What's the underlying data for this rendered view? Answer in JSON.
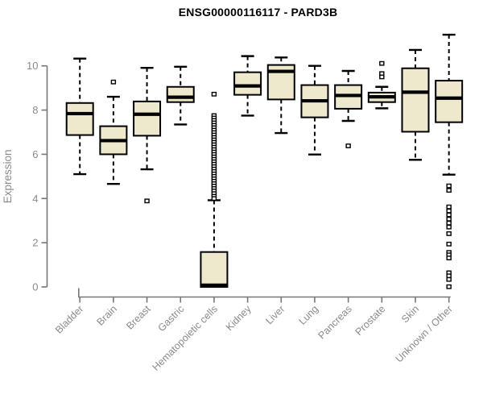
{
  "title": "ENSG00000116117 - PARD3B",
  "colors": {
    "box_fill": "#EEE8CD",
    "box_stroke": "#000000",
    "median": "#000000",
    "whisker": "#000000",
    "axis": "#777777",
    "tick_label": "#8a8a8a",
    "title_color": "#000000",
    "background": "#ffffff"
  },
  "chart_data": {
    "type": "boxplot",
    "title": "ENSG00000116117 - PARD3B",
    "xlabel": "",
    "ylabel": "Expression",
    "yticks": [
      0,
      2,
      4,
      6,
      8,
      10
    ],
    "ylim": [
      0,
      11.4
    ],
    "grid": false,
    "legend": "none",
    "categories": [
      "Bladder",
      "Brain",
      "Breast",
      "Gastric",
      "Hematopoietic cells",
      "Kidney",
      "Liver",
      "Lung",
      "Pancreas",
      "Prostate",
      "Skin",
      "Unknown / Other"
    ],
    "series": [
      {
        "label": "Bladder",
        "low": 5.1,
        "q1": 6.87,
        "median": 7.84,
        "q3": 8.32,
        "high": 10.33,
        "outliers": []
      },
      {
        "label": "Brain",
        "low": 4.66,
        "q1": 6.0,
        "median": 6.62,
        "q3": 7.27,
        "high": 8.6,
        "outliers": [
          9.27
        ]
      },
      {
        "label": "Breast",
        "low": 5.32,
        "q1": 6.84,
        "median": 7.81,
        "q3": 8.39,
        "high": 9.91,
        "outliers": [
          3.89
        ]
      },
      {
        "label": "Gastric",
        "low": 7.35,
        "q1": 8.36,
        "median": 8.58,
        "q3": 9.05,
        "high": 9.96,
        "outliers": []
      },
      {
        "label": "Hematopoietic cells",
        "low": 0.0,
        "q1": 0.0,
        "median": 0.08,
        "q3": 1.58,
        "high": 3.92,
        "outliers": [
          8.72,
          7.75,
          7.64,
          7.53,
          7.42,
          7.31,
          7.2,
          7.09,
          6.98,
          6.87,
          6.76,
          6.65,
          6.54,
          6.43,
          6.32,
          6.21,
          6.1,
          5.99,
          5.88,
          5.77,
          5.66,
          5.55,
          5.44,
          5.33,
          5.22,
          5.11,
          5.0,
          4.89,
          4.78,
          4.67,
          4.56,
          4.45,
          4.34,
          4.22,
          4.1,
          4.0
        ]
      },
      {
        "label": "Kidney",
        "low": 7.75,
        "q1": 8.69,
        "median": 9.09,
        "q3": 9.71,
        "high": 10.44,
        "outliers": []
      },
      {
        "label": "Liver",
        "low": 6.96,
        "q1": 8.48,
        "median": 9.75,
        "q3": 10.04,
        "high": 10.38,
        "outliers": []
      },
      {
        "label": "Lung",
        "low": 5.99,
        "q1": 7.67,
        "median": 8.42,
        "q3": 9.13,
        "high": 10.0,
        "outliers": []
      },
      {
        "label": "Pancreas",
        "low": 7.51,
        "q1": 8.06,
        "median": 8.66,
        "q3": 9.13,
        "high": 9.77,
        "outliers": [
          6.38
        ]
      },
      {
        "label": "Prostate",
        "low": 8.08,
        "q1": 8.36,
        "median": 8.6,
        "q3": 8.79,
        "high": 9.05,
        "outliers": [
          10.11,
          9.65,
          9.5
        ]
      },
      {
        "label": "Skin",
        "low": 5.75,
        "q1": 7.02,
        "median": 8.81,
        "q3": 9.89,
        "high": 10.72,
        "outliers": []
      },
      {
        "label": "Unknown / Other",
        "low": 5.08,
        "q1": 7.45,
        "median": 8.54,
        "q3": 9.33,
        "high": 11.41,
        "outliers": [
          4.57,
          4.37,
          3.62,
          3.44,
          3.26,
          3.07,
          2.89,
          2.71,
          2.41,
          1.94,
          1.56,
          1.45,
          1.31,
          0.64,
          0.5,
          0.34,
          0.01
        ]
      }
    ]
  }
}
